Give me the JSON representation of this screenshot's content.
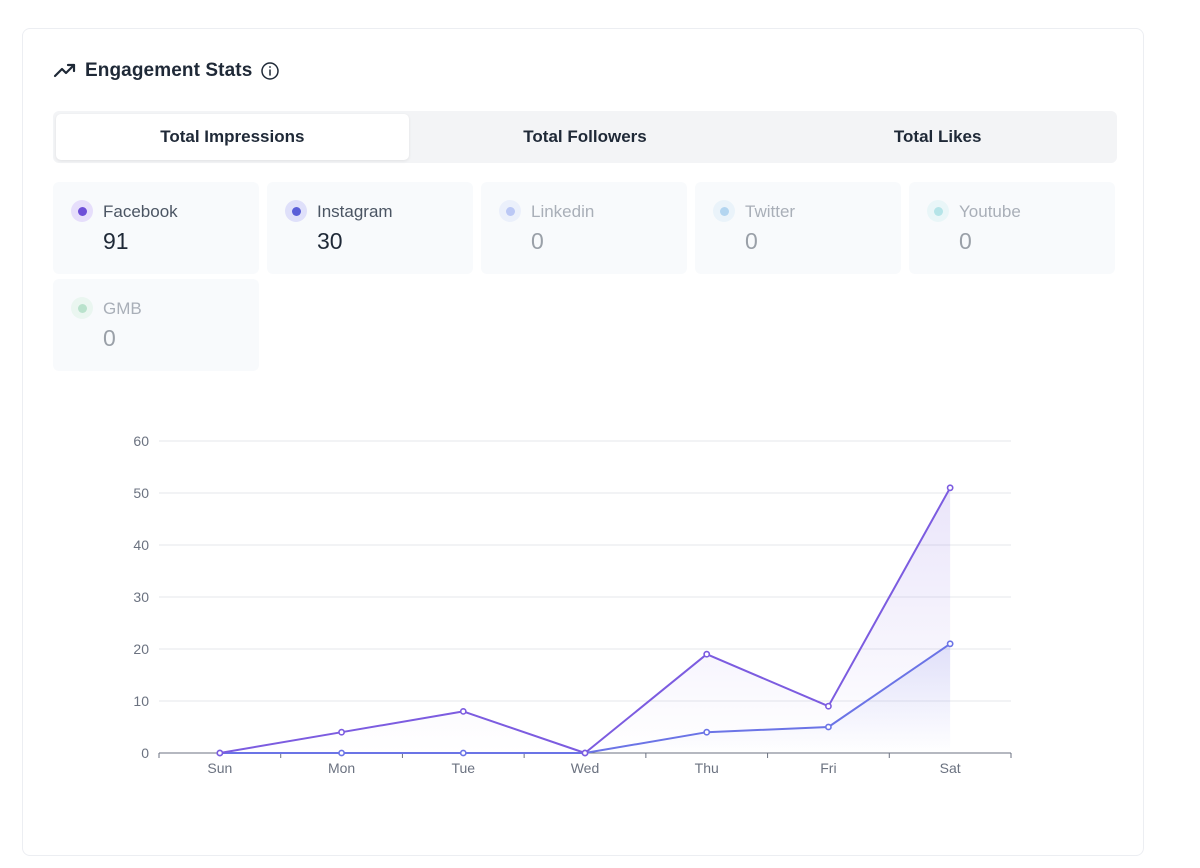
{
  "header": {
    "title": "Engagement Stats",
    "trend_icon": "trending-up-icon",
    "info_icon": "info-icon"
  },
  "tabs": [
    {
      "label": "Total Impressions",
      "active": true
    },
    {
      "label": "Total Followers",
      "active": false
    },
    {
      "label": "Total Likes",
      "active": false
    }
  ],
  "stats": [
    {
      "name": "Facebook",
      "value": "91",
      "dot_color": "#6d4fd8",
      "ring_color": "#e6defb",
      "muted": false
    },
    {
      "name": "Instagram",
      "value": "30",
      "dot_color": "#5a5fd8",
      "ring_color": "#dfe0fa",
      "muted": false
    },
    {
      "name": "Linkedin",
      "value": "0",
      "dot_color": "#8aa0f0",
      "ring_color": "#e2e8fb",
      "muted": true
    },
    {
      "name": "Twitter",
      "value": "0",
      "dot_color": "#7cb8e8",
      "ring_color": "#dfeef9",
      "muted": true
    },
    {
      "name": "Youtube",
      "value": "0",
      "dot_color": "#7fd3d8",
      "ring_color": "#def4f5",
      "muted": true
    },
    {
      "name": "GMB",
      "value": "0",
      "dot_color": "#86cfa6",
      "ring_color": "#e0f3e8",
      "muted": true
    }
  ],
  "chart_data": {
    "type": "line",
    "categories": [
      "Sun",
      "Mon",
      "Tue",
      "Wed",
      "Thu",
      "Fri",
      "Sat"
    ],
    "ylim": [
      0,
      60
    ],
    "yticks": [
      0,
      10,
      20,
      30,
      40,
      50,
      60
    ],
    "grid": true,
    "series": [
      {
        "name": "Facebook",
        "values": [
          0,
          4,
          8,
          0,
          19,
          9,
          51
        ],
        "color": "#7c5ce0"
      },
      {
        "name": "Instagram",
        "values": [
          0,
          0,
          0,
          0,
          4,
          5,
          21
        ],
        "color": "#6b74e6"
      }
    ]
  }
}
